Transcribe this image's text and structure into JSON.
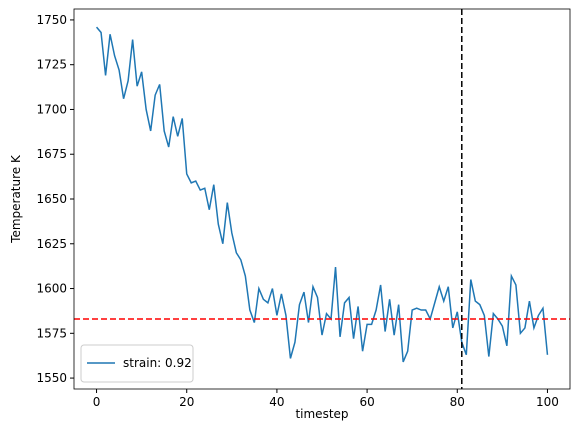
{
  "chart_data": {
    "type": "line",
    "xlabel": "timestep",
    "ylabel": "Temperature K",
    "x": [
      0,
      1,
      2,
      3,
      4,
      5,
      6,
      7,
      8,
      9,
      10,
      11,
      12,
      13,
      14,
      15,
      16,
      17,
      18,
      19,
      20,
      21,
      22,
      23,
      24,
      25,
      26,
      27,
      28,
      29,
      30,
      31,
      32,
      33,
      34,
      35,
      36,
      37,
      38,
      39,
      40,
      41,
      42,
      43,
      44,
      45,
      46,
      47,
      48,
      49,
      50,
      51,
      52,
      53,
      54,
      55,
      56,
      57,
      58,
      59,
      60,
      61,
      62,
      63,
      64,
      65,
      66,
      67,
      68,
      69,
      70,
      71,
      72,
      73,
      74,
      75,
      76,
      77,
      78,
      79,
      80,
      81,
      82,
      83,
      84,
      85,
      86,
      87,
      88,
      89,
      90,
      91,
      92,
      93,
      94,
      95,
      96,
      97,
      98,
      99,
      100
    ],
    "series": [
      {
        "name": "strain: 0.92",
        "color": "#1f77b4",
        "values": [
          1746,
          1743,
          1719,
          1742,
          1730,
          1722,
          1706,
          1716,
          1739,
          1713,
          1721,
          1700,
          1688,
          1708,
          1714,
          1688,
          1679,
          1696,
          1685,
          1695,
          1664,
          1659,
          1660,
          1655,
          1656,
          1644,
          1658,
          1636,
          1625,
          1648,
          1631,
          1620,
          1616,
          1607,
          1588,
          1581,
          1600,
          1594,
          1592,
          1600,
          1585,
          1597,
          1585,
          1561,
          1570,
          1591,
          1598,
          1581,
          1601,
          1595,
          1574,
          1586,
          1583,
          1612,
          1573,
          1592,
          1595,
          1572,
          1590,
          1565,
          1580,
          1580,
          1588,
          1602,
          1576,
          1594,
          1574,
          1591,
          1559,
          1565,
          1588,
          1589,
          1588,
          1588,
          1583,
          1592,
          1601,
          1593,
          1601,
          1578,
          1587,
          1570,
          1563,
          1605,
          1593,
          1591,
          1585,
          1562,
          1586,
          1583,
          1579,
          1568,
          1607,
          1602,
          1575,
          1578,
          1593,
          1578,
          1585,
          1589,
          1563
        ]
      }
    ],
    "reference_lines": [
      {
        "axis": "y",
        "value": 1583,
        "color": "#ff0000"
      },
      {
        "axis": "x",
        "value": 81,
        "color": "#000000"
      }
    ],
    "xlim": [
      -5,
      105
    ],
    "ylim": [
      1543.9,
      1756.1
    ],
    "xticks": [
      0,
      20,
      40,
      60,
      80,
      100
    ],
    "yticks": [
      1550,
      1575,
      1600,
      1625,
      1650,
      1675,
      1700,
      1725,
      1750
    ],
    "legend": "lower left"
  }
}
